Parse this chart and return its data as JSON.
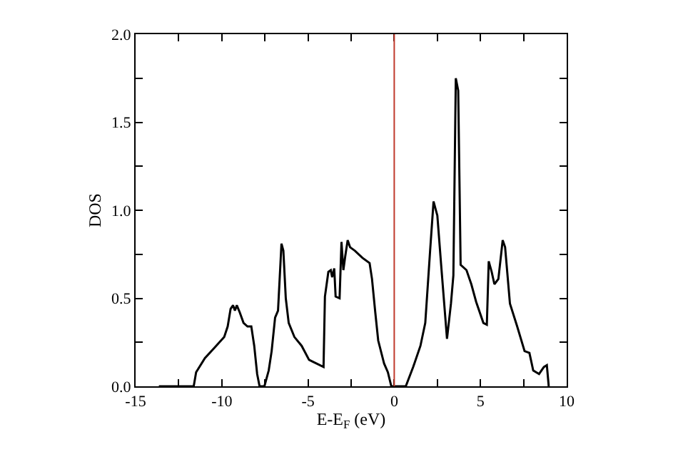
{
  "chart_data": {
    "type": "line",
    "xlabel": "E-E$_{F}$ (eV)",
    "ylabel": "DOS",
    "x": [
      -13.65,
      -11.63,
      -11.49,
      -10.98,
      -10.42,
      -9.86,
      -9.66,
      -9.49,
      -9.35,
      -9.24,
      -9.13,
      -8.96,
      -8.74,
      -8.51,
      -8.29,
      -8.12,
      -7.95,
      -7.81,
      -7.53,
      -7.28,
      -7.11,
      -6.91,
      -6.74,
      -6.54,
      -6.43,
      -6.29,
      -6.12,
      -5.79,
      -5.37,
      -4.94,
      -4.52,
      -4.1,
      -4.02,
      -3.82,
      -3.68,
      -3.6,
      -3.48,
      -3.4,
      -3.17,
      -3.06,
      -2.95,
      -2.84,
      -2.7,
      -2.56,
      -2.28,
      -1.85,
      -1.43,
      -1.29,
      -1.1,
      -0.93,
      -0.59,
      -0.37,
      -0.17,
      0.67,
      1.1,
      1.52,
      1.8,
      2.08,
      2.28,
      2.5,
      2.72,
      3.06,
      3.29,
      3.43,
      3.57,
      3.71,
      3.85,
      4.19,
      4.47,
      4.75,
      5.17,
      5.37,
      5.48,
      5.65,
      5.81,
      6.04,
      6.29,
      6.43,
      6.71,
      7.13,
      7.56,
      7.84,
      8.06,
      8.4,
      8.68,
      8.85,
      8.96
    ],
    "series": [
      {
        "color": "#000000",
        "values": [
          0,
          0,
          0.08,
          0.16,
          0.22,
          0.28,
          0.34,
          0.44,
          0.46,
          0.43,
          0.46,
          0.42,
          0.36,
          0.34,
          0.34,
          0.23,
          0.07,
          0,
          0,
          0.09,
          0.2,
          0.39,
          0.43,
          0.81,
          0.77,
          0.5,
          0.36,
          0.28,
          0.23,
          0.15,
          0.13,
          0.11,
          0.51,
          0.65,
          0.66,
          0.62,
          0.67,
          0.51,
          0.5,
          0.82,
          0.66,
          0.74,
          0.83,
          0.79,
          0.77,
          0.73,
          0.7,
          0.61,
          0.42,
          0.26,
          0.13,
          0.08,
          0,
          0,
          0.11,
          0.23,
          0.36,
          0.77,
          1.05,
          0.97,
          0.69,
          0.27,
          0.47,
          0.63,
          1.75,
          1.68,
          0.69,
          0.66,
          0.58,
          0.48,
          0.36,
          0.35,
          0.71,
          0.65,
          0.58,
          0.61,
          0.83,
          0.79,
          0.47,
          0.34,
          0.2,
          0.19,
          0.09,
          0.07,
          0.11,
          0.12,
          0
        ]
      }
    ],
    "xlim": [
      -15,
      10
    ],
    "ylim": [
      0,
      2
    ],
    "xticks": [
      -15,
      {
        "value": -12.5,
        "label": null
      },
      -10,
      {
        "value": -7.5,
        "label": null
      },
      -5,
      {
        "value": -2.5,
        "label": null
      },
      0,
      {
        "value": 2.5,
        "label": null
      },
      5,
      {
        "value": 7.5,
        "label": null
      },
      10
    ],
    "yticks": [
      {
        "value": 0,
        "label": "0.0"
      },
      {
        "value": 0.25,
        "label": null
      },
      {
        "value": 0.5,
        "label": "0.5"
      },
      {
        "value": 0.75,
        "label": null
      },
      {
        "value": 1,
        "label": "1.0"
      },
      {
        "value": 1.25,
        "label": null
      },
      {
        "value": 1.5,
        "label": "1.5"
      },
      {
        "value": 1.75,
        "label": null
      },
      {
        "value": 2,
        "label": "2.0"
      }
    ],
    "ref_lines": [
      {
        "axis": "x",
        "value": 0,
        "color": "#c0392b"
      }
    ],
    "marker": "none",
    "line_style": "solid"
  }
}
